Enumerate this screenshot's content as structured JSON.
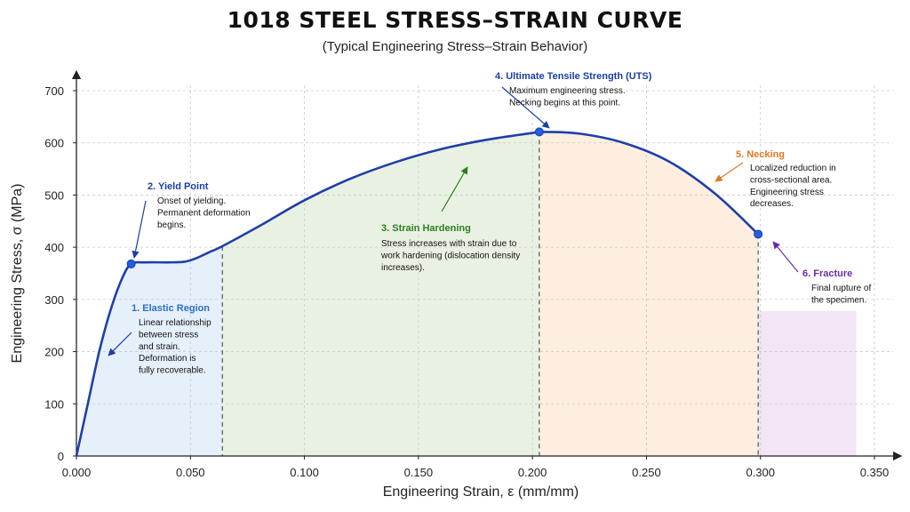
{
  "header": {
    "title": "1018 STEEL STRESS–STRAIN CURVE",
    "subtitle": "(Typical Engineering Stress–Strain Behavior)"
  },
  "chart_data": {
    "type": "line",
    "title": "1018 STEEL STRESS–STRAIN CURVE",
    "subtitle": "(Typical Engineering Stress–Strain Behavior)",
    "xlabel": "Engineering Strain, ε (mm/mm)",
    "ylabel": "Engineering Stress, σ (MPa)",
    "xlim": [
      0,
      0.35
    ],
    "ylim": [
      0,
      700
    ],
    "xticks": [
      "0.000",
      "0.050",
      "0.100",
      "0.150",
      "0.200",
      "0.250",
      "0.300",
      "0.350"
    ],
    "xtick_values": [
      0,
      0.05,
      0.1,
      0.15,
      0.2,
      0.25,
      0.3,
      0.35
    ],
    "yticks": [
      "0",
      "100",
      "200",
      "300",
      "400",
      "500",
      "600",
      "700"
    ],
    "ytick_values": [
      0,
      100,
      200,
      300,
      400,
      500,
      600,
      700
    ],
    "grid": true,
    "line_color": "#1f3fa8",
    "series": [
      {
        "x": [
          0,
          0.005,
          0.01,
          0.015,
          0.02,
          0.024,
          0.03,
          0.04,
          0.047,
          0.052,
          0.058,
          0.064,
          0.08,
          0.1,
          0.12,
          0.14,
          0.16,
          0.18,
          0.2,
          0.203,
          0.22,
          0.24,
          0.26,
          0.28,
          0.299
        ],
        "y": [
          0,
          100,
          200,
          280,
          340,
          368,
          371,
          371,
          372,
          378,
          390,
          402,
          440,
          490,
          531,
          563,
          588,
          606,
          619,
          621,
          618,
          600,
          564,
          503,
          425
        ]
      }
    ],
    "key_points": [
      {
        "name": "Yield Point",
        "x": 0.024,
        "y": 368
      },
      {
        "name": "UTS",
        "x": 0.203,
        "y": 621
      },
      {
        "name": "Fracture",
        "x": 0.299,
        "y": 425
      }
    ],
    "regions": [
      {
        "name": "Elastic Region",
        "x_start": 0,
        "x_end": 0.064,
        "color": "#e6f0fb"
      },
      {
        "name": "Strain Hardening",
        "x_start": 0.064,
        "x_end": 0.203,
        "color": "#e9f2e2"
      },
      {
        "name": "Necking",
        "x_start": 0.203,
        "x_end": 0.299,
        "color": "#fdeedf"
      },
      {
        "name": "Fracture",
        "x_start": 0.299,
        "x_end": 0.342,
        "y_top": 278,
        "color": "#f1e5f6"
      }
    ],
    "region_boundaries": [
      0.064,
      0.203,
      0.299
    ],
    "annotations": [
      {
        "id": "elastic",
        "title": "1. Elastic Region",
        "color": "#2a6fc9",
        "body": [
          "Linear relationship",
          "between stress",
          "and strain.",
          "Deformation is",
          "fully recoverable."
        ]
      },
      {
        "id": "yield",
        "title": "2. Yield Point",
        "color": "#1a3fa8",
        "body": [
          "Onset of yielding.",
          "Permanent deformation",
          "begins."
        ]
      },
      {
        "id": "hardening",
        "title": "3. Strain Hardening",
        "color": "#2e7d23",
        "body": [
          "Stress increases with strain due to",
          "work hardening (dislocation density",
          "increases)."
        ]
      },
      {
        "id": "uts",
        "title": "4. Ultimate Tensile Strength (UTS)",
        "color": "#1a3fa8",
        "body": [
          "Maximum engineering stress.",
          "Necking begins at this point."
        ]
      },
      {
        "id": "necking",
        "title": "5. Necking",
        "color": "#e07a1f",
        "body": [
          "Localized reduction in",
          "cross-sectional area.",
          "Engineering stress",
          "decreases."
        ]
      },
      {
        "id": "fracture",
        "title": "6. Fracture",
        "color": "#6a2aa8",
        "body": [
          "Final rupture of",
          "the specimen."
        ]
      }
    ]
  }
}
